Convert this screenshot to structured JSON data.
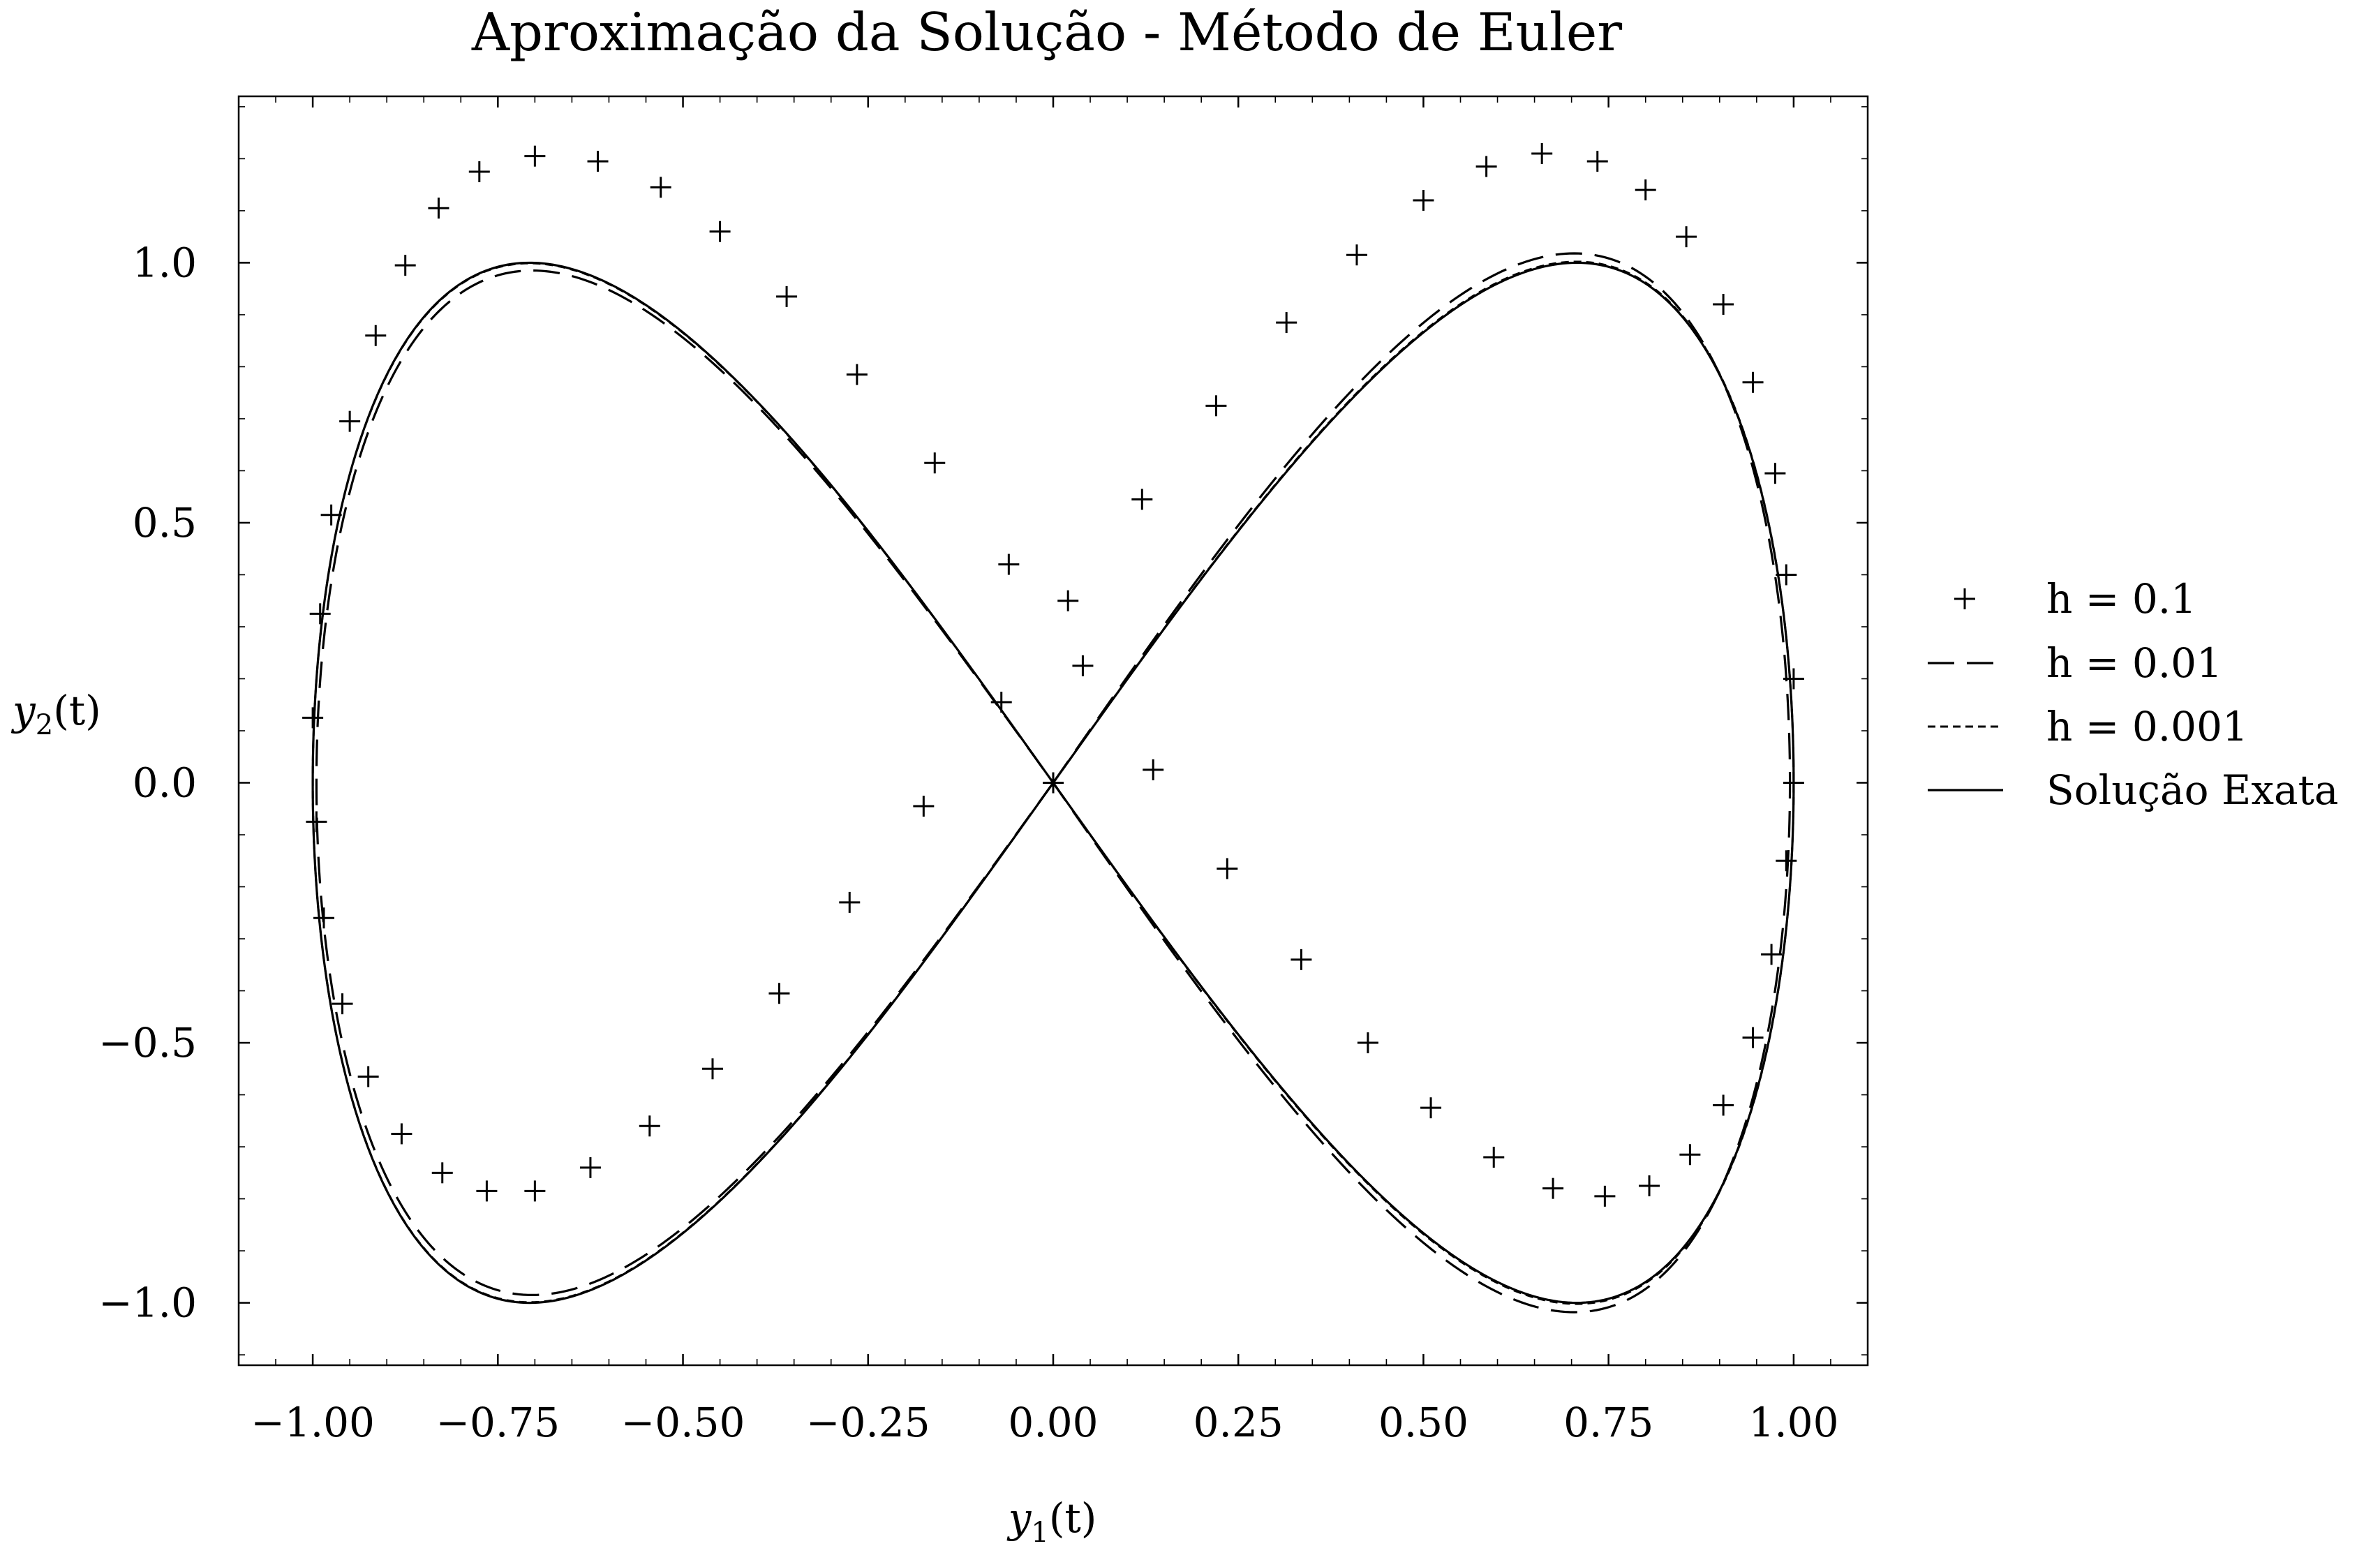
{
  "chart_data": {
    "type": "line",
    "title": "Aproximação da Solução - Método de Euler",
    "xlabel": {
      "var": "y",
      "sub": "1",
      "rest": "(t)"
    },
    "ylabel": {
      "var": "y",
      "sub": "2",
      "rest": "(t)"
    },
    "xlim": [
      -1.1,
      1.1
    ],
    "ylim": [
      -1.12,
      1.32
    ],
    "x_ticks": [
      -1.0,
      -0.75,
      -0.5,
      -0.25,
      0.0,
      0.25,
      0.5,
      0.75,
      1.0
    ],
    "x_tick_labels": [
      "−1.00",
      "−0.75",
      "−0.50",
      "−0.25",
      "0.00",
      "0.25",
      "0.50",
      "0.75",
      "1.00"
    ],
    "y_ticks": [
      -1.0,
      -0.5,
      0.0,
      0.5,
      1.0
    ],
    "y_tick_labels": [
      "−1.0",
      "−0.5",
      "0.0",
      "0.5",
      "1.0"
    ],
    "grid": false,
    "legend_position": "right-outside",
    "color": "#000000",
    "series": [
      {
        "name": "h = 0.1",
        "style": "plus-markers",
        "points": [
          [
            0.0,
            0.0
          ],
          [
            0.02,
            0.35
          ],
          [
            0.12,
            0.545
          ],
          [
            0.22,
            0.725
          ],
          [
            0.315,
            0.885
          ],
          [
            0.41,
            1.015
          ],
          [
            0.5,
            1.12
          ],
          [
            0.585,
            1.185
          ],
          [
            0.66,
            1.21
          ],
          [
            0.735,
            1.195
          ],
          [
            0.8,
            1.14
          ],
          [
            0.855,
            1.05
          ],
          [
            0.905,
            0.92
          ],
          [
            0.945,
            0.77
          ],
          [
            0.975,
            0.595
          ],
          [
            0.99,
            0.4
          ],
          [
            1.0,
            0.2
          ],
          [
            1.0,
            0.0
          ],
          [
            0.99,
            -0.15
          ],
          [
            0.97,
            -0.33
          ],
          [
            0.945,
            -0.49
          ],
          [
            0.905,
            -0.62
          ],
          [
            0.86,
            -0.715
          ],
          [
            0.805,
            -0.775
          ],
          [
            0.745,
            -0.795
          ],
          [
            0.675,
            -0.78
          ],
          [
            0.595,
            -0.72
          ],
          [
            0.51,
            -0.625
          ],
          [
            0.425,
            -0.5
          ],
          [
            0.335,
            -0.34
          ],
          [
            0.235,
            -0.165
          ],
          [
            0.135,
            0.025
          ],
          [
            0.04,
            0.225
          ],
          [
            -0.07,
            0.155
          ],
          [
            -0.06,
            0.42
          ],
          [
            -0.16,
            0.615
          ],
          [
            -0.265,
            0.785
          ],
          [
            -0.36,
            0.935
          ],
          [
            -0.45,
            1.06
          ],
          [
            -0.53,
            1.145
          ],
          [
            -0.615,
            1.195
          ],
          [
            -0.7,
            1.205
          ],
          [
            -0.775,
            1.175
          ],
          [
            -0.83,
            1.105
          ],
          [
            -0.875,
            0.995
          ],
          [
            -0.915,
            0.86
          ],
          [
            -0.95,
            0.695
          ],
          [
            -0.975,
            0.515
          ],
          [
            -0.99,
            0.325
          ],
          [
            -1.0,
            0.125
          ],
          [
            -0.995,
            -0.075
          ],
          [
            -0.985,
            -0.26
          ],
          [
            -0.96,
            -0.425
          ],
          [
            -0.925,
            -0.565
          ],
          [
            -0.88,
            -0.675
          ],
          [
            -0.825,
            -0.75
          ],
          [
            -0.765,
            -0.785
          ],
          [
            -0.7,
            -0.785
          ],
          [
            -0.625,
            -0.74
          ],
          [
            -0.545,
            -0.66
          ],
          [
            -0.46,
            -0.55
          ],
          [
            -0.37,
            -0.405
          ],
          [
            -0.275,
            -0.23
          ],
          [
            -0.175,
            -0.045
          ]
        ]
      },
      {
        "name": "h = 0.01",
        "style": "long-dash",
        "param": "x = sin t, y = sin 2t",
        "y_scale_first_lobe": 1.018,
        "y_scale_second_lobe": 0.985,
        "x_scale": 0.995
      },
      {
        "name": "h = 0.001",
        "style": "short-dash",
        "param": "x = sin t, y = sin 2t",
        "y_scale_first_lobe": 1.002,
        "y_scale_second_lobe": 0.999,
        "x_scale": 1.0
      },
      {
        "name": "Solução Exata",
        "style": "solid",
        "param": "x = sin t, y = sin 2t"
      }
    ]
  }
}
